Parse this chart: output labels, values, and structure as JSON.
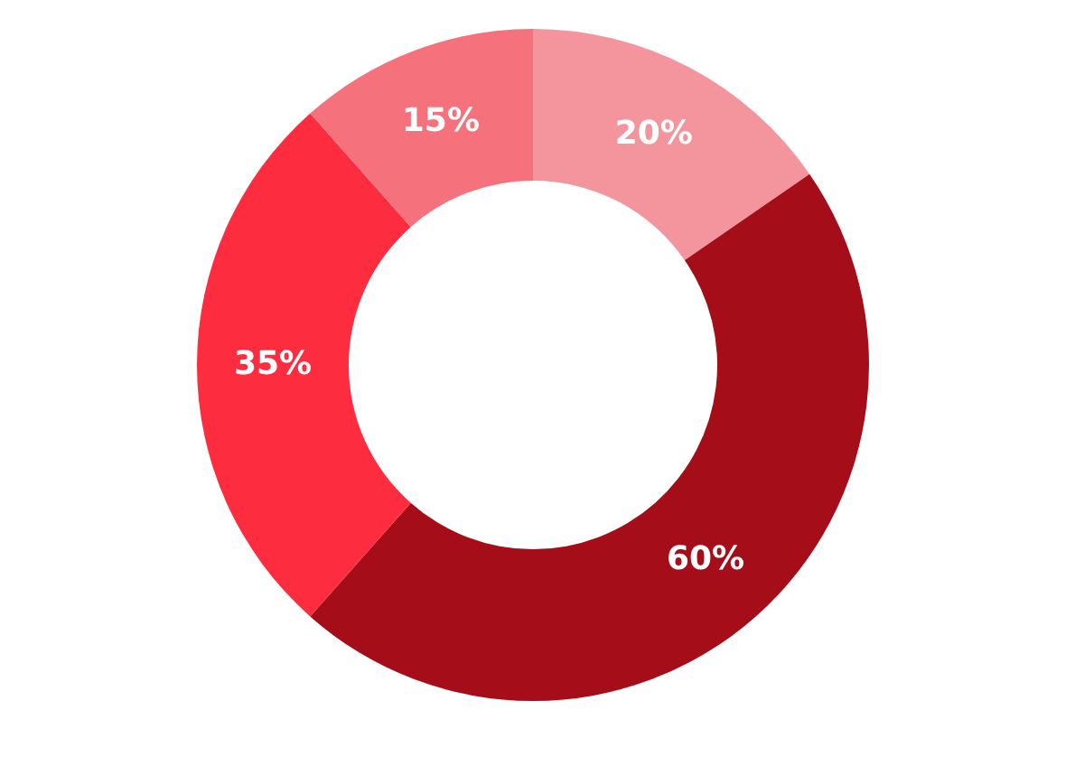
{
  "chart_data": {
    "type": "donut",
    "categories": [
      null,
      null,
      null,
      null
    ],
    "values": [
      20,
      60,
      35,
      15
    ],
    "colors": [
      "#f4959d",
      "#a50d19",
      "#fd2c3f",
      "#f5717b"
    ],
    "value_labels": [
      "20%",
      "60%",
      "35%",
      "15%"
    ]
  }
}
